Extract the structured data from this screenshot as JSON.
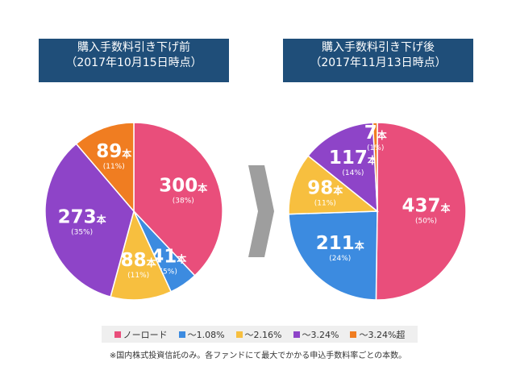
{
  "colors": {
    "noload": "#e94e7b",
    "upto108": "#3c8be0",
    "upto216": "#f7bf3f",
    "upto324": "#8e44c8",
    "over324": "#f07d21",
    "arrow": "#9e9e9e",
    "title_bg": "#1f4e79"
  },
  "legend": [
    {
      "label": "ノーロード",
      "color_key": "noload"
    },
    {
      "label": "～1.08%",
      "color_key": "upto108"
    },
    {
      "label": "～2.16%",
      "color_key": "upto216"
    },
    {
      "label": "～3.24%",
      "color_key": "upto324"
    },
    {
      "label": "～3.24%超",
      "color_key": "over324"
    }
  ],
  "note": "※国内株式投資信託のみ。各ファンドにて最大でかかる申込手数料率ごとの本数。",
  "chart_data": [
    {
      "type": "pie",
      "title_line1": "購入手数料引き下げ前",
      "title_line2": "（2017年10月15日時点）",
      "unit": "本",
      "slices": [
        {
          "category": "ノーロード",
          "value": 300,
          "percent": "(38%)",
          "color_key": "noload"
        },
        {
          "category": "～1.08%",
          "value": 41,
          "percent": "(5%)",
          "color_key": "upto108"
        },
        {
          "category": "～2.16%",
          "value": 88,
          "percent": "(11%)",
          "color_key": "upto216"
        },
        {
          "category": "～3.24%",
          "value": 273,
          "percent": "(35%)",
          "color_key": "upto324"
        },
        {
          "category": "～3.24%超",
          "value": 89,
          "percent": "(11%)",
          "color_key": "over324"
        }
      ]
    },
    {
      "type": "pie",
      "title_line1": "購入手数料引き下げ後",
      "title_line2": "（2017年11月13日時点）",
      "unit": "本",
      "slices": [
        {
          "category": "ノーロード",
          "value": 437,
          "percent": "(50%)",
          "color_key": "noload"
        },
        {
          "category": "～1.08%",
          "value": 211,
          "percent": "(24%)",
          "color_key": "upto108"
        },
        {
          "category": "～2.16%",
          "value": 98,
          "percent": "(11%)",
          "color_key": "upto216"
        },
        {
          "category": "～3.24%",
          "value": 117,
          "percent": "(14%)",
          "color_key": "upto324"
        },
        {
          "category": "～3.24%超",
          "value": 7,
          "percent": "(1%)",
          "color_key": "over324"
        }
      ]
    }
  ]
}
